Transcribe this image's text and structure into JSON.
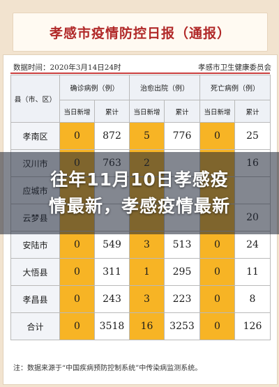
{
  "title": "孝感市疫情防控日报（通报）",
  "meta": {
    "data_time": "数据时间：2020年3月14日24时",
    "source_org": "孝感市卫生健康委员会"
  },
  "table": {
    "county_header": "县（市、区）",
    "groups": [
      "确诊病例（例）",
      "治愈出院（例）",
      "死亡病例（例）"
    ],
    "subheaders": [
      "当日新增",
      "累计",
      "当日新增",
      "累计",
      "当日新增",
      "累计"
    ],
    "rows": [
      {
        "name": "孝南区",
        "values": [
          "0",
          "872",
          "5",
          "776",
          "0",
          "25"
        ]
      },
      {
        "name": "汉川市",
        "values": [
          "0",
          "763",
          "2",
          "",
          "",
          "16"
        ]
      },
      {
        "name": "应城市",
        "values": [
          "",
          "",
          "",
          "",
          "",
          ""
        ]
      },
      {
        "name": "云梦县",
        "values": [
          "",
          "",
          "",
          "",
          "",
          "20"
        ]
      },
      {
        "name": "安陆市",
        "values": [
          "0",
          "549",
          "3",
          "513",
          "0",
          "24"
        ]
      },
      {
        "name": "大悟县",
        "values": [
          "0",
          "311",
          "1",
          "295",
          "0",
          "11"
        ]
      },
      {
        "name": "孝昌县",
        "values": [
          "0",
          "243",
          "3",
          "223",
          "0",
          "8"
        ]
      },
      {
        "name": "合计",
        "values": [
          "0",
          "3518",
          "16",
          "3253",
          "0",
          "126"
        ]
      }
    ]
  },
  "footnote": "注：数据来源于“中国疾病预防控制系统”中传染病监测系统。",
  "overlay": {
    "line1": "往年11月10日孝感疫",
    "line2": "情最新，孝感疫情最新"
  },
  "colors": {
    "accent_red": "#b12929",
    "highlight_orange": "#f7b425",
    "background": "#f2e3cf"
  }
}
